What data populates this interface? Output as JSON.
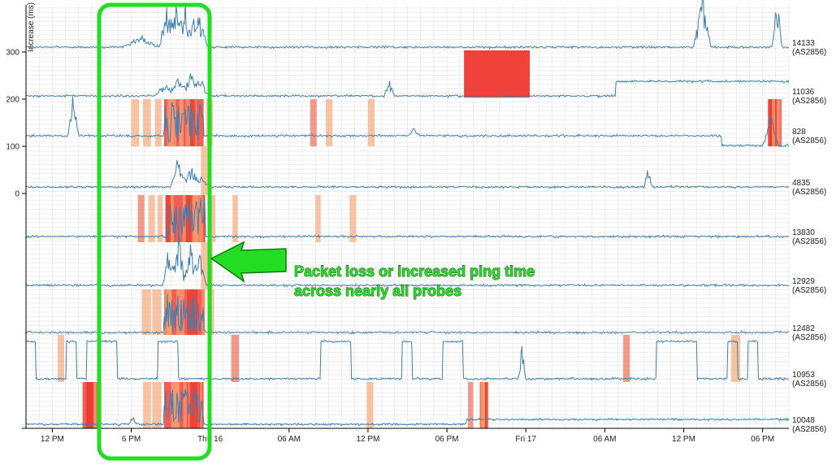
{
  "chart_data": {
    "type": "line",
    "title": "",
    "ylabel": "Increase (ms)",
    "y_ticks": [
      0,
      100,
      200,
      300
    ],
    "x_ticks": [
      "12 PM",
      "6 PM",
      "Thu 16",
      "06 AM",
      "12 PM",
      "06 PM",
      "Fri 17",
      "06 AM",
      "12 PM",
      "06 PM"
    ],
    "x_range_hours": [
      -2,
      56
    ],
    "grid": true,
    "colors": {
      "line": "#3f7fad",
      "loss_high": "#f0413a",
      "loss_mid": "#f07f6f",
      "loss_low": "#f6b48c",
      "highlight": "#22dd22",
      "grid": "#dddddd"
    },
    "series": [
      {
        "name": "14133",
        "asn": "(AS2856)"
      },
      {
        "name": "11036",
        "asn": "(AS2856)"
      },
      {
        "name": "828",
        "asn": "(AS2856)"
      },
      {
        "name": "4835",
        "asn": "(AS2856)"
      },
      {
        "name": "13830",
        "asn": "(AS2856)"
      },
      {
        "name": "12929",
        "asn": "(AS2856)"
      },
      {
        "name": "12482",
        "asn": "(AS2856)"
      },
      {
        "name": "10953",
        "asn": "(AS2856)"
      },
      {
        "name": "10048",
        "asn": "(AS2856)"
      }
    ],
    "annotation": {
      "lines": [
        "Packet loss or increased ping time",
        "across nearly all probes"
      ]
    }
  }
}
